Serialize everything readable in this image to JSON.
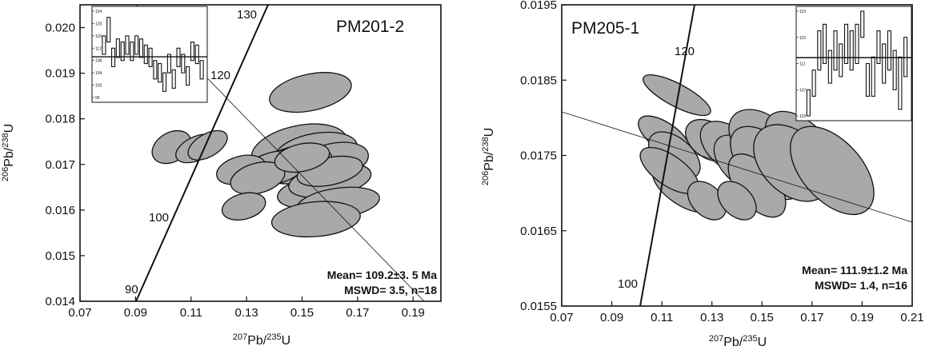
{
  "chart_data": [
    {
      "type": "scatter",
      "sample": "PM201-2",
      "xlabel": "207Pb/235U",
      "ylabel": "206Pb/238U",
      "xlim": [
        0.07,
        0.2
      ],
      "ylim": [
        0.014,
        0.0205
      ],
      "xticks": [
        "0.07",
        "0.09",
        "0.11",
        "0.13",
        "0.15",
        "0.17",
        "0.19"
      ],
      "yticks": [
        "0.014",
        "0.015",
        "0.016",
        "0.017",
        "0.018",
        "0.019",
        "0.020"
      ],
      "concordia_labels": [
        "90",
        "100",
        "120",
        "130"
      ],
      "result_line1": "Mean= 109.2±3. 5 Ma",
      "result_line2": "MSWD= 3.5, n=18",
      "ellipse_fill": "#a9a9a9",
      "ellipses": [
        {
          "cx": 0.103,
          "cy": 0.01738,
          "rx": 0.0075,
          "ry": 0.00032,
          "angle": 30
        },
        {
          "cx": 0.112,
          "cy": 0.01735,
          "rx": 0.008,
          "ry": 0.00026,
          "angle": 25
        },
        {
          "cx": 0.116,
          "cy": 0.01742,
          "rx": 0.0078,
          "ry": 0.00025,
          "angle": 30
        },
        {
          "cx": 0.153,
          "cy": 0.01858,
          "rx": 0.015,
          "ry": 0.0004,
          "angle": 12
        },
        {
          "cx": 0.149,
          "cy": 0.01735,
          "rx": 0.0175,
          "ry": 0.0005,
          "angle": 12
        },
        {
          "cx": 0.155,
          "cy": 0.01728,
          "rx": 0.015,
          "ry": 0.0004,
          "angle": 10
        },
        {
          "cx": 0.162,
          "cy": 0.0171,
          "rx": 0.012,
          "ry": 0.00037,
          "angle": 10
        },
        {
          "cx": 0.148,
          "cy": 0.017,
          "rx": 0.013,
          "ry": 0.0004,
          "angle": 12
        },
        {
          "cx": 0.14,
          "cy": 0.01692,
          "rx": 0.012,
          "ry": 0.00035,
          "angle": 15
        },
        {
          "cx": 0.128,
          "cy": 0.01688,
          "rx": 0.009,
          "ry": 0.0003,
          "angle": 15
        },
        {
          "cx": 0.134,
          "cy": 0.0167,
          "rx": 0.01,
          "ry": 0.00033,
          "angle": 15
        },
        {
          "cx": 0.156,
          "cy": 0.0164,
          "rx": 0.015,
          "ry": 0.00035,
          "angle": 8
        },
        {
          "cx": 0.16,
          "cy": 0.01665,
          "rx": 0.015,
          "ry": 0.00035,
          "angle": 10
        },
        {
          "cx": 0.163,
          "cy": 0.01615,
          "rx": 0.015,
          "ry": 0.00033,
          "angle": 8
        },
        {
          "cx": 0.155,
          "cy": 0.0158,
          "rx": 0.016,
          "ry": 0.00038,
          "angle": 5
        },
        {
          "cx": 0.16,
          "cy": 0.01685,
          "rx": 0.012,
          "ry": 0.0003,
          "angle": 12
        },
        {
          "cx": 0.129,
          "cy": 0.01608,
          "rx": 0.008,
          "ry": 0.00028,
          "angle": 15
        },
        {
          "cx": 0.15,
          "cy": 0.01715,
          "rx": 0.01,
          "ry": 0.0003,
          "angle": 12
        }
      ],
      "inset": {
        "ymin": 96,
        "ymax": 124,
        "tick_labels": [
          "96",
          "100",
          "104",
          "108",
          "112",
          "116",
          "120",
          "124"
        ],
        "mean": 109.2,
        "bars": [
          [
            110,
            116
          ],
          [
            114,
            122
          ],
          [
            106,
            112
          ],
          [
            109,
            115
          ],
          [
            108,
            114
          ],
          [
            110,
            116
          ],
          [
            108,
            114
          ],
          [
            110,
            116
          ],
          [
            109,
            115
          ],
          [
            107,
            113
          ],
          [
            106,
            112
          ],
          [
            102,
            108
          ],
          [
            101,
            107
          ],
          [
            98,
            104
          ],
          [
            104,
            110
          ],
          [
            99,
            105
          ],
          [
            106,
            112
          ],
          [
            104,
            110
          ],
          [
            100,
            106
          ],
          [
            108,
            114
          ],
          [
            107,
            113
          ],
          [
            102,
            108
          ]
        ]
      }
    },
    {
      "type": "scatter",
      "sample": "PM205-1",
      "xlabel": "207Pb/235U",
      "ylabel": "206Pb/238U",
      "xlim": [
        0.07,
        0.21
      ],
      "ylim": [
        0.0155,
        0.0195
      ],
      "xticks": [
        "0.07",
        "0.09",
        "0.11",
        "0.13",
        "0.15",
        "0.17",
        "0.19",
        "0.21"
      ],
      "yticks": [
        "0.0155",
        "0.0165",
        "0.0175",
        "0.0185",
        "0.0195"
      ],
      "concordia_labels": [
        "100",
        "120"
      ],
      "result_line1": "Mean= 111.9±1.2 Ma",
      "result_line2": "MSWD= 1.4, n=16",
      "ellipse_fill": "#a9a9a9",
      "ellipses": [
        {
          "cx": 0.116,
          "cy": 0.0183,
          "rx": 0.0045,
          "ry": 0.0005,
          "angle": 62
        },
        {
          "cx": 0.111,
          "cy": 0.01775,
          "rx": 0.0055,
          "ry": 0.0004,
          "angle": 55
        },
        {
          "cx": 0.115,
          "cy": 0.0175,
          "rx": 0.007,
          "ry": 0.0004,
          "angle": 50
        },
        {
          "cx": 0.118,
          "cy": 0.01705,
          "rx": 0.006,
          "ry": 0.00045,
          "angle": 55
        },
        {
          "cx": 0.113,
          "cy": 0.0173,
          "rx": 0.006,
          "ry": 0.00045,
          "angle": 55
        },
        {
          "cx": 0.129,
          "cy": 0.0177,
          "rx": 0.007,
          "ry": 0.00035,
          "angle": 55
        },
        {
          "cx": 0.137,
          "cy": 0.0176,
          "rx": 0.008,
          "ry": 0.00045,
          "angle": 50
        },
        {
          "cx": 0.142,
          "cy": 0.0174,
          "rx": 0.008,
          "ry": 0.00045,
          "angle": 45
        },
        {
          "cx": 0.128,
          "cy": 0.0169,
          "rx": 0.006,
          "ry": 0.0003,
          "angle": 45
        },
        {
          "cx": 0.15,
          "cy": 0.0177,
          "rx": 0.01,
          "ry": 0.0005,
          "angle": 50
        },
        {
          "cx": 0.152,
          "cy": 0.0174,
          "rx": 0.01,
          "ry": 0.0006,
          "angle": 45
        },
        {
          "cx": 0.148,
          "cy": 0.0171,
          "rx": 0.008,
          "ry": 0.0005,
          "angle": 40
        },
        {
          "cx": 0.166,
          "cy": 0.0176,
          "rx": 0.01,
          "ry": 0.0006,
          "angle": 45
        },
        {
          "cx": 0.162,
          "cy": 0.0174,
          "rx": 0.012,
          "ry": 0.0006,
          "angle": 45
        },
        {
          "cx": 0.14,
          "cy": 0.0169,
          "rx": 0.006,
          "ry": 0.0003,
          "angle": 45
        },
        {
          "cx": 0.178,
          "cy": 0.0173,
          "rx": 0.012,
          "ry": 0.0007,
          "angle": 42
        }
      ],
      "inset": {
        "ymin": 103,
        "ymax": 119,
        "tick_labels": [
          "103",
          "107",
          "111",
          "115",
          "119"
        ],
        "mean": 111.9,
        "bars": [
          [
            103,
            107
          ],
          [
            106,
            110
          ],
          [
            110,
            116
          ],
          [
            111,
            117
          ],
          [
            108,
            113
          ],
          [
            110,
            116
          ],
          [
            109,
            114
          ],
          [
            111,
            117
          ],
          [
            110,
            116
          ],
          [
            111,
            117
          ],
          [
            115,
            119
          ],
          [
            106,
            111
          ],
          [
            106,
            112
          ],
          [
            111,
            116
          ],
          [
            108,
            114
          ],
          [
            110,
            116
          ],
          [
            107,
            113
          ],
          [
            104,
            112
          ],
          [
            109,
            115
          ]
        ]
      }
    }
  ]
}
